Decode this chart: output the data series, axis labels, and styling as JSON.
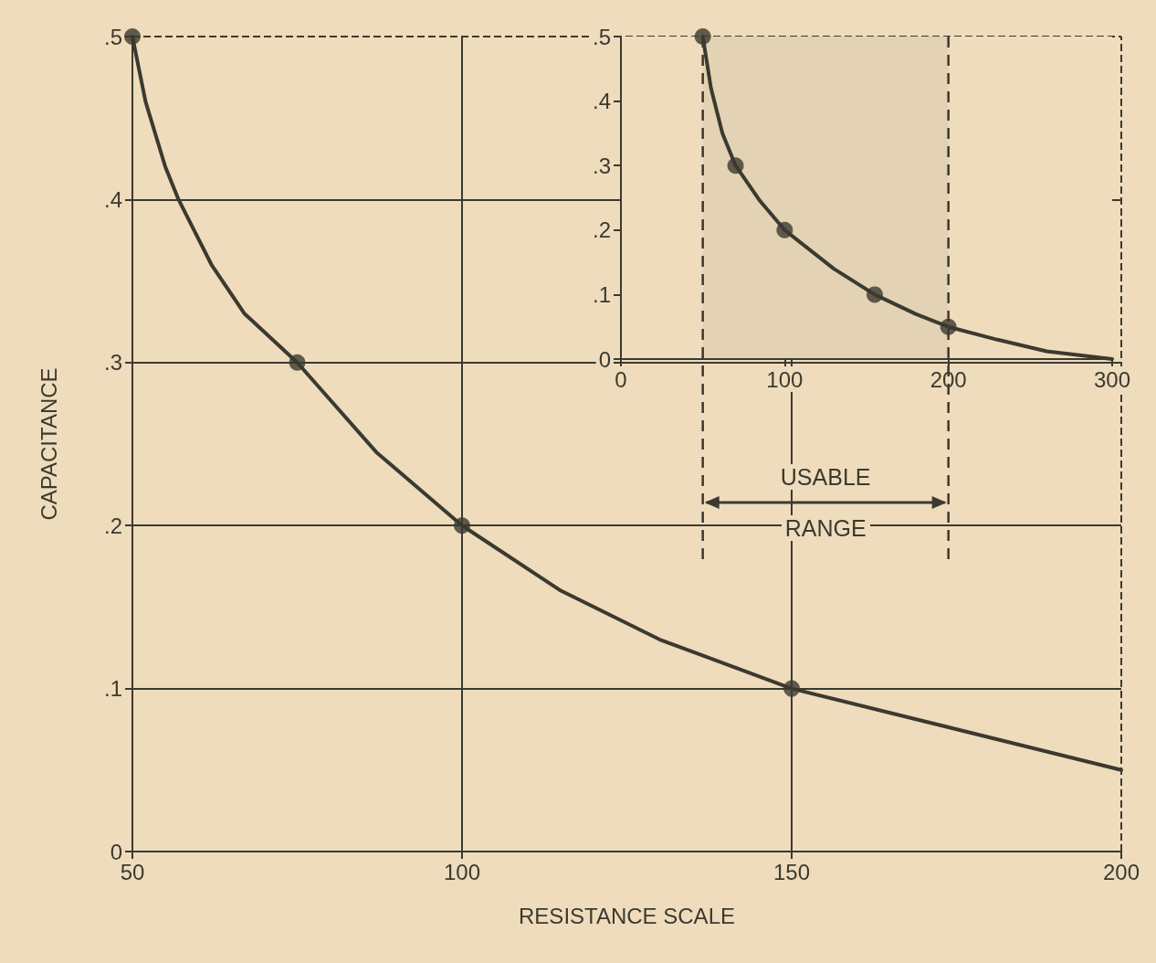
{
  "chart_data": [
    {
      "type": "line",
      "xlabel": "RESISTANCE SCALE",
      "ylabel": "CAPACITANCE",
      "xlim": [
        50,
        200
      ],
      "xticks": [
        50,
        100,
        150,
        200
      ],
      "ylim": [
        0,
        0.5
      ],
      "yticks": [
        0,
        {
          "value": 0.1,
          "label": ".1"
        },
        {
          "value": 0.2,
          "label": ".2"
        },
        {
          "value": 0.3,
          "label": ".3"
        },
        {
          "value": 0.4,
          "label": ".4"
        },
        {
          "value": 0.5,
          "label": ".5"
        }
      ],
      "series": [
        {
          "color": "#3b3a30",
          "marker": "none",
          "x": [
            50,
            52,
            55,
            57,
            62,
            67,
            75,
            87,
            100,
            115,
            130,
            150,
            170,
            185,
            200
          ],
          "values": [
            0.5,
            0.46,
            0.42,
            0.4,
            0.36,
            0.33,
            0.3,
            0.245,
            0.2,
            0.16,
            0.13,
            0.1,
            0.08,
            0.065,
            0.05
          ]
        },
        {
          "type": "scatter",
          "color": "#3b3a30",
          "marker": "circle",
          "x": [
            50,
            75,
            100,
            150
          ],
          "values": [
            0.5,
            0.3,
            0.2,
            0.1
          ]
        }
      ],
      "ref_lines": [
        {
          "axis": "y",
          "value": 0.4,
          "line_style": "solid"
        },
        {
          "axis": "y",
          "value": 0.3,
          "line_style": "solid"
        },
        {
          "axis": "y",
          "value": 0.2,
          "line_style": "solid"
        },
        {
          "axis": "y",
          "value": 0.1,
          "line_style": "solid"
        },
        {
          "axis": "x",
          "value": 100,
          "line_style": "solid"
        },
        {
          "axis": "x",
          "value": 150,
          "line_style": "solid"
        },
        {
          "axis": "y",
          "value": 0.5,
          "line_style": "dashed"
        },
        {
          "axis": "x",
          "value": 200,
          "line_style": "dashed"
        }
      ]
    },
    {
      "type": "line",
      "xlim": [
        0,
        300
      ],
      "xticks": [
        0,
        100,
        200,
        300
      ],
      "ylim": [
        0,
        0.5
      ],
      "yticks": [
        0,
        {
          "value": 0.1,
          "label": ".1"
        },
        {
          "value": 0.2,
          "label": ".2"
        },
        {
          "value": 0.3,
          "label": ".3"
        },
        {
          "value": 0.4,
          "label": ".4"
        },
        {
          "value": 0.5,
          "label": ".5"
        }
      ],
      "series": [
        {
          "color": "#3b3a30",
          "marker": "none",
          "x": [
            50,
            55,
            62,
            70,
            85,
            100,
            130,
            155,
            180,
            200,
            230,
            260,
            300
          ],
          "values": [
            0.5,
            0.42,
            0.35,
            0.3,
            0.245,
            0.2,
            0.14,
            0.1,
            0.07,
            0.05,
            0.03,
            0.012,
            0
          ]
        },
        {
          "type": "scatter",
          "color": "#3b3a30",
          "marker": "circle",
          "x": [
            50,
            70,
            100,
            155,
            200
          ],
          "values": [
            0.5,
            0.3,
            0.2,
            0.1,
            0.05
          ]
        }
      ],
      "bands": [
        {
          "axis": "x",
          "from": 50,
          "to": 200,
          "label": "USABLE RANGE"
        }
      ]
    }
  ]
}
